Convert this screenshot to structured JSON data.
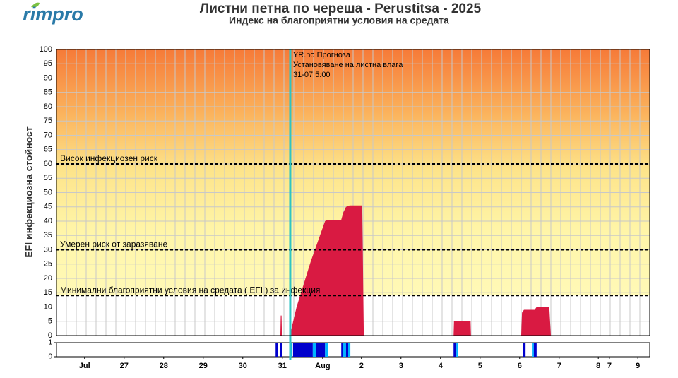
{
  "logo": "rimpro",
  "chart_data": {
    "type": "area",
    "title": "Листни петна по череша - Perustitsa - 2025",
    "subtitle": "Индекс на благоприятни условия на средата",
    "ylabel": "EFI инфекциозна стойност",
    "xlim": [
      0,
      15
    ],
    "xticks": [
      {
        "value": 0.71,
        "label": "Jul"
      },
      {
        "value": 1.71,
        "label": "27"
      },
      {
        "value": 2.71,
        "label": "28"
      },
      {
        "value": 3.71,
        "label": "29"
      },
      {
        "value": 4.71,
        "label": "30"
      },
      {
        "value": 5.71,
        "label": "31"
      },
      {
        "value": 6.73,
        "label": "Aug"
      },
      {
        "value": 7.71,
        "label": "2"
      },
      {
        "value": 8.71,
        "label": "3"
      },
      {
        "value": 9.71,
        "label": "4"
      },
      {
        "value": 10.71,
        "label": "5"
      },
      {
        "value": 11.71,
        "label": "6"
      },
      {
        "value": 12.71,
        "label": "7"
      },
      {
        "value": 13.7,
        "label": "8"
      },
      {
        "value": 13.98,
        "label": "7"
      },
      {
        "value": 14.7,
        "label": "9"
      }
    ],
    "ylim": [
      0,
      100
    ],
    "yticks": [
      0,
      5,
      10,
      15,
      20,
      25,
      30,
      35,
      40,
      45,
      50,
      55,
      60,
      65,
      70,
      75,
      80,
      85,
      90,
      95,
      100
    ],
    "grid": true,
    "series": [
      {
        "name": "EFI",
        "color": "#d91a42",
        "x": [
          5.66,
          5.67,
          5.69,
          5.7,
          5.91,
          5.95,
          6.07,
          6.25,
          6.43,
          6.61,
          6.79,
          6.84,
          7.2,
          7.25,
          7.32,
          7.41,
          7.73,
          7.77,
          10.04,
          10.05,
          10.47,
          10.48,
          11.75,
          11.77,
          11.82,
          12.09,
          12.14,
          12.46,
          12.5
        ],
        "values": [
          0,
          7,
          7,
          0,
          0,
          3,
          10,
          18,
          26,
          33,
          40,
          40.5,
          40.5,
          43,
          45,
          45.5,
          45.5,
          0,
          0,
          5,
          5,
          0,
          0,
          8,
          9,
          9,
          10,
          10,
          0
        ]
      }
    ],
    "thresholds": [
      {
        "value": 60,
        "label": "Висок инфекциозен риск"
      },
      {
        "value": 30,
        "label": "Умерен риск от заразяване"
      },
      {
        "value": 14,
        "label": "Минимални благоприятни условия на средата ( EFI ) за инфекция"
      }
    ],
    "forecast": {
      "x": 5.91,
      "color": "#2ec4c4",
      "lines": [
        "YR.no Прогноза",
        "Установяване на листна влага",
        "31-07 5:00"
      ]
    },
    "wetness": {
      "ylim": [
        0,
        1
      ],
      "yticks": [
        0,
        1
      ],
      "spans": [
        {
          "start": 5.54,
          "end": 5.59,
          "value": 1,
          "color": "#0000cc"
        },
        {
          "start": 5.66,
          "end": 5.7,
          "value": 1,
          "color": "#0000cc"
        },
        {
          "start": 5.91,
          "end": 5.95,
          "value": 1,
          "color": "#00b4ff"
        },
        {
          "start": 5.98,
          "end": 6.48,
          "value": 1,
          "color": "#0000cc"
        },
        {
          "start": 6.48,
          "end": 6.57,
          "value": 1,
          "color": "#00b4ff"
        },
        {
          "start": 6.57,
          "end": 6.79,
          "value": 1,
          "color": "#0000cc"
        },
        {
          "start": 6.79,
          "end": 6.875,
          "value": 1,
          "color": "#00b4ff"
        },
        {
          "start": 7.2,
          "end": 7.25,
          "value": 1,
          "color": "#0000cc"
        },
        {
          "start": 7.25,
          "end": 7.32,
          "value": 1,
          "color": "#00b4ff"
        },
        {
          "start": 7.32,
          "end": 7.375,
          "value": 1,
          "color": "#0000cc"
        },
        {
          "start": 7.375,
          "end": 7.43,
          "value": 1,
          "color": "#00b4ff"
        },
        {
          "start": 10.04,
          "end": 10.11,
          "value": 1,
          "color": "#0000cc"
        },
        {
          "start": 10.11,
          "end": 10.16,
          "value": 1,
          "color": "#00b4ff"
        },
        {
          "start": 11.79,
          "end": 11.86,
          "value": 1,
          "color": "#0000cc"
        },
        {
          "start": 12.02,
          "end": 12.07,
          "value": 1,
          "color": "#00b4ff"
        },
        {
          "start": 12.07,
          "end": 12.14,
          "value": 1,
          "color": "#0000cc"
        }
      ]
    }
  }
}
